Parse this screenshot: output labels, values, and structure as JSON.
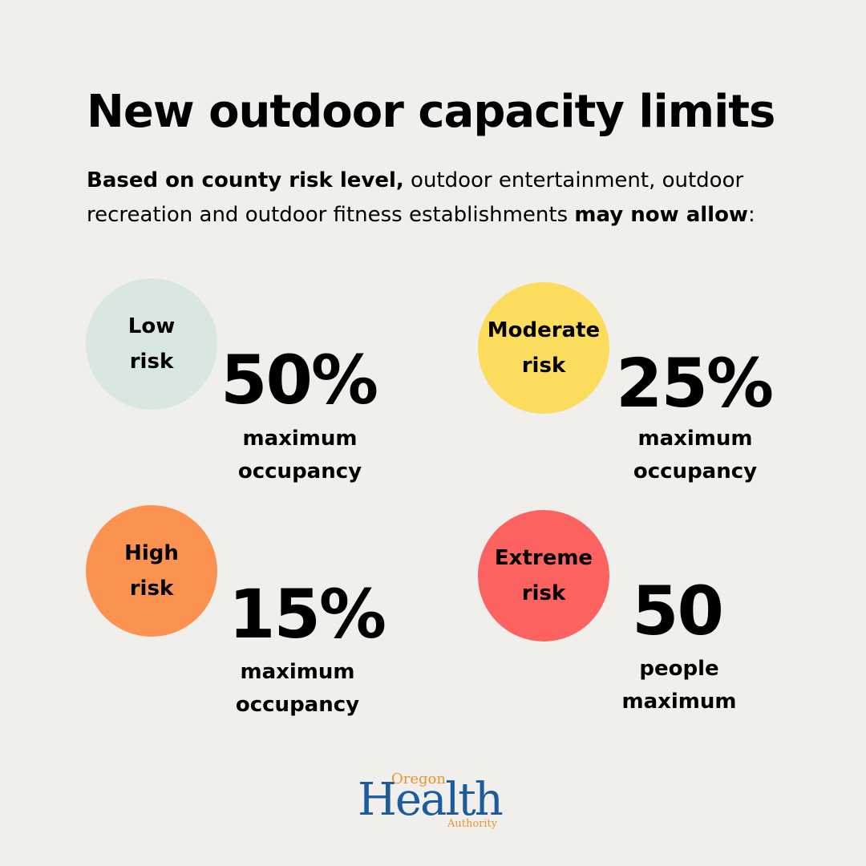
{
  "title": "New outdoor capacity limits",
  "intro": {
    "bold_lead": "Based on county risk level,",
    "text_middle": " outdoor entertainment, outdoor recreation and outdoor fitness establishments ",
    "bold_tail": "may now allow",
    "end": ":"
  },
  "levels": [
    {
      "line1": "Low",
      "line2": "risk",
      "value": "50%",
      "desc1": "maximum",
      "desc2": "occupancy",
      "color": "#d8e7e0"
    },
    {
      "line1": "Moderate",
      "line2": "risk",
      "value": "25%",
      "desc1": "maximum",
      "desc2": "occupancy",
      "color": "#fcdc5c"
    },
    {
      "line1": "High",
      "line2": "risk",
      "value": "15%",
      "desc1": "maximum",
      "desc2": "occupancy",
      "color": "#fb924f"
    },
    {
      "line1": "Extreme",
      "line2": "risk",
      "value": "50",
      "desc1": "people",
      "desc2": "maximum",
      "color": "#fc625f"
    }
  ],
  "logo": {
    "oregon": "Oregon",
    "health": "Health",
    "authority": "Authority",
    "colors": {
      "health": "#1c5b9c",
      "accent": "#e8952f"
    }
  },
  "colors": {
    "background": "#f1efeb",
    "text": "#000000"
  }
}
